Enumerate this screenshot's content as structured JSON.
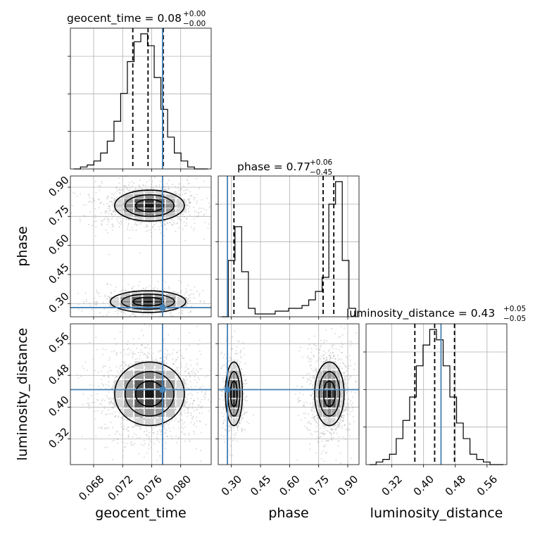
{
  "chart_data": {
    "type": "corner",
    "parameters": [
      "geocent_time",
      "phase",
      "luminosity_distance"
    ],
    "titles": [
      {
        "name": "geocent_time",
        "median": "0.08",
        "plus": "+0.00",
        "minus": "−0.00"
      },
      {
        "name": "phase",
        "median": "0.77",
        "plus": "+0.06",
        "minus": "−0.45"
      },
      {
        "name": "luminosity_distance",
        "median": "0.43",
        "plus": "+0.05",
        "minus": "−0.05"
      }
    ],
    "ranges": {
      "geocent_time": [
        0.0648,
        0.0842
      ],
      "phase": [
        0.232,
        0.958
      ],
      "luminosity_distance": [
        0.255,
        0.61
      ]
    },
    "ticks": {
      "geocent_time": {
        "values": [
          0.068,
          0.072,
          0.076,
          0.08
        ],
        "labels": [
          "0.068",
          "0.072",
          "0.076",
          "0.080"
        ]
      },
      "phase": {
        "values": [
          0.3,
          0.45,
          0.6,
          0.75,
          0.9
        ],
        "labels": [
          "0.30",
          "0.45",
          "0.60",
          "0.75",
          "0.90"
        ]
      },
      "luminosity_distance": {
        "values": [
          0.32,
          0.4,
          0.48,
          0.56
        ],
        "labels": [
          "0.32",
          "0.40",
          "0.48",
          "0.56"
        ]
      }
    },
    "truths": {
      "geocent_time": 0.0775,
      "phase": 0.2795,
      "luminosity_distance": 0.444
    },
    "quantiles": {
      "geocent_time": [
        0.0734,
        0.0755,
        0.0776
      ],
      "phase": [
        0.313,
        0.773,
        0.828
      ],
      "luminosity_distance": [
        0.378,
        0.428,
        0.478
      ]
    },
    "histograms": {
      "geocent_time": [
        0,
        1,
        2,
        4,
        8,
        14,
        24,
        38,
        54,
        64,
        68,
        62,
        46,
        30,
        16,
        8,
        4,
        1,
        0,
        0
      ],
      "phase": [
        0,
        20,
        32,
        16,
        3,
        1,
        1,
        1,
        2,
        2,
        3,
        3,
        4,
        6,
        9,
        14,
        40,
        48,
        20,
        3
      ],
      "luminosity_distance": [
        0,
        1,
        2,
        4,
        10,
        17,
        26,
        38,
        46,
        52,
        48,
        38,
        26,
        16,
        10,
        4,
        2,
        1,
        0,
        0
      ]
    },
    "grid": true
  }
}
